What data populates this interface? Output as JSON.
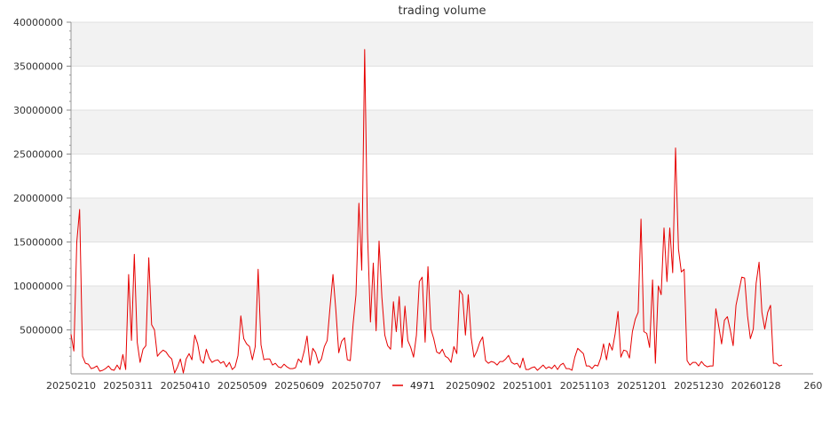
{
  "chart_data": {
    "type": "line",
    "title": "trading volume",
    "xlabel": "",
    "ylabel": "",
    "ylim": [
      0,
      40000000
    ],
    "y_ticks": [
      "5000000",
      "10000000",
      "15000000",
      "20000000",
      "25000000",
      "30000000",
      "35000000",
      "40000000"
    ],
    "x_tick_labels": [
      "20250210",
      "20250311",
      "20250410",
      "20250509",
      "20250609",
      "20250707",
      "20250807",
      "20250902",
      "20251001",
      "20251103",
      "20251201",
      "20251230",
      "20260128",
      "260"
    ],
    "grid": "horizontal bands",
    "legend_position": "bottom-center",
    "series": [
      {
        "name": "4971",
        "color": "#e60000",
        "values": [
          4500000,
          2600000,
          15000000,
          18700000,
          2000000,
          1200000,
          1100000,
          600000,
          700000,
          900000,
          300000,
          400000,
          600000,
          900000,
          500000,
          400000,
          1000000,
          500000,
          2200000,
          500000,
          11300000,
          3800000,
          13600000,
          3600000,
          1300000,
          2800000,
          3200000,
          13200000,
          5600000,
          5000000,
          2000000,
          2400000,
          2700000,
          2500000,
          2000000,
          1700000,
          100000,
          800000,
          1700000,
          100000,
          1700000,
          2300000,
          1600000,
          4400000,
          3400000,
          1600000,
          1200000,
          2800000,
          1800000,
          1300000,
          1500000,
          1600000,
          1200000,
          1400000,
          800000,
          1300000,
          500000,
          800000,
          2100000,
          6600000,
          4000000,
          3400000,
          3100000,
          1600000,
          3100000,
          11900000,
          3300000,
          1600000,
          1700000,
          1700000,
          1000000,
          1200000,
          800000,
          700000,
          1100000,
          800000,
          600000,
          600000,
          700000,
          1700000,
          1300000,
          2600000,
          4300000,
          1000000,
          2900000,
          2400000,
          1200000,
          1700000,
          3100000,
          3800000,
          7700000,
          11300000,
          7300000,
          2400000,
          3700000,
          4100000,
          1600000,
          1500000,
          5700000,
          9000000,
          19400000,
          11800000,
          36900000,
          16000000,
          5900000,
          12600000,
          4900000,
          15100000,
          8700000,
          4400000,
          3200000,
          2800000,
          8200000,
          4800000,
          8800000,
          3000000,
          7700000,
          3800000,
          3000000,
          1900000,
          4400000,
          10500000,
          11000000,
          3600000,
          12200000,
          5100000,
          4000000,
          2500000,
          2300000,
          2800000,
          2000000,
          1800000,
          1300000,
          3100000,
          2300000,
          9500000,
          9000000,
          4400000,
          9000000,
          4100000,
          1900000,
          2600000,
          3600000,
          4200000,
          1500000,
          1200000,
          1400000,
          1300000,
          1000000,
          1400000,
          1400000,
          1700000,
          2100000,
          1300000,
          1100000,
          1200000,
          700000,
          1800000,
          500000,
          500000,
          700000,
          800000,
          400000,
          700000,
          1000000,
          600000,
          800000,
          600000,
          1000000,
          500000,
          1000000,
          1200000,
          600000,
          600000,
          400000,
          1900000,
          2900000,
          2600000,
          2300000,
          900000,
          900000,
          600000,
          1000000,
          900000,
          1800000,
          3400000,
          1600000,
          3500000,
          2700000,
          4500000,
          7100000,
          1900000,
          2700000,
          2600000,
          1800000,
          4800000,
          6200000,
          7000000,
          17600000,
          4800000,
          4600000,
          3000000,
          10700000,
          1200000,
          10000000,
          9000000,
          16600000,
          10500000,
          16600000,
          11500000,
          25700000,
          14200000,
          11600000,
          11900000,
          1500000,
          1000000,
          1300000,
          1300000,
          900000,
          1400000,
          1000000,
          800000,
          900000,
          900000,
          7400000,
          5400000,
          3400000,
          6100000,
          6500000,
          5000000,
          3200000,
          7800000,
          9400000,
          11000000,
          10900000,
          6600000,
          4000000,
          5100000,
          10300000,
          12700000,
          7000000,
          5100000,
          7000000,
          7800000,
          1200000,
          1200000,
          900000,
          1000000
        ]
      }
    ]
  }
}
